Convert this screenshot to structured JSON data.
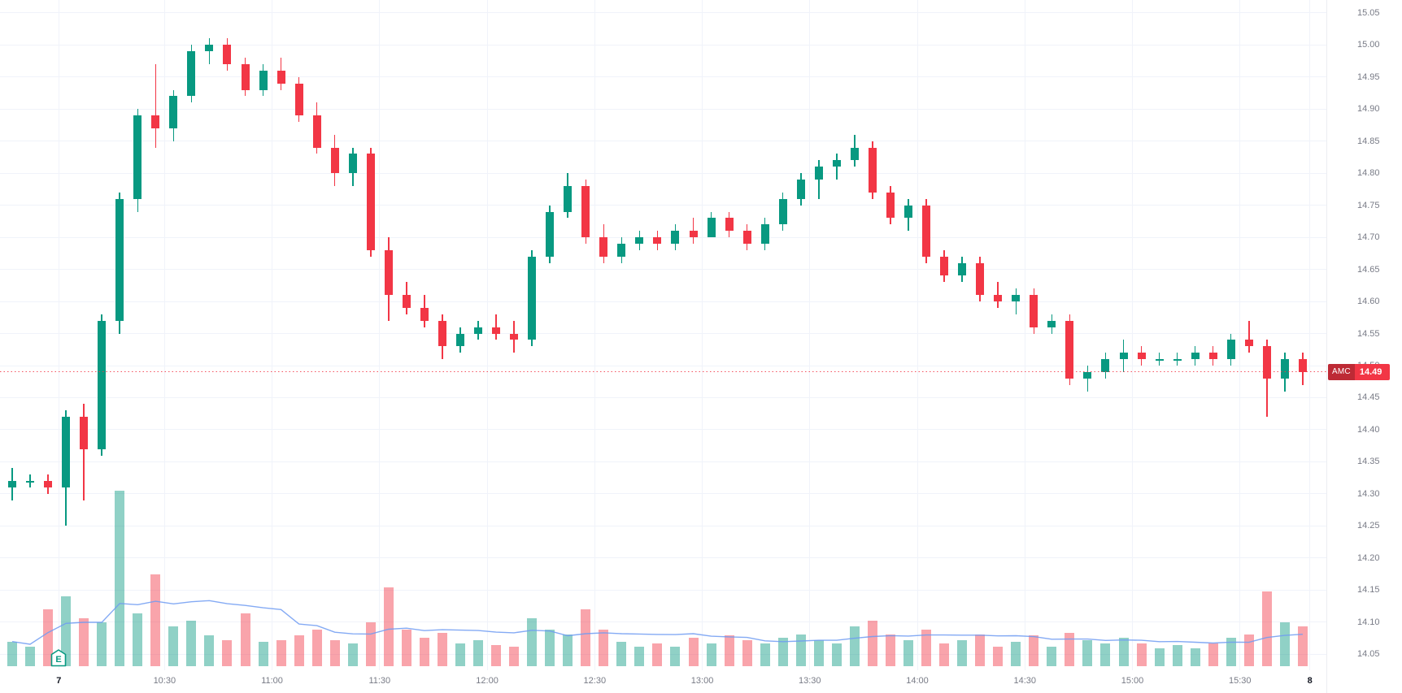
{
  "colors": {
    "background": "#ffffff",
    "up": "#089981",
    "down": "#f23645",
    "volume_up": "rgba(8,153,129,0.45)",
    "volume_down": "rgba(242,54,69,0.45)",
    "ma_line": "#6f9bf2",
    "grid": "#f0f3fa",
    "axis_text": "#787b86",
    "day_label_text": "#131722",
    "price_line": "#f23645",
    "badge_bg": "#f23645",
    "badge_text": "#ffffff",
    "earnings": "#089981"
  },
  "chart_data": {
    "type": "candlestick",
    "symbol": "AMC",
    "last_price_label": "14.49",
    "price_line": 14.49,
    "interval": "5m",
    "ylim": [
      14.025,
      15.07
    ],
    "y_axis_labels": [
      "15.05",
      "15.00",
      "14.95",
      "14.90",
      "14.85",
      "14.80",
      "14.75",
      "14.70",
      "14.65",
      "14.60",
      "14.55",
      "14.50",
      "14.45",
      "14.40",
      "14.35",
      "14.30",
      "14.25",
      "14.20",
      "14.15",
      "14.10",
      "14.05"
    ],
    "x_ticks": [
      {
        "label": "7",
        "index": 2.6,
        "major": true
      },
      {
        "label": "10:30",
        "index": 8.5,
        "major": false
      },
      {
        "label": "11:00",
        "index": 14.5,
        "major": false
      },
      {
        "label": "11:30",
        "index": 20.5,
        "major": false
      },
      {
        "label": "12:00",
        "index": 26.5,
        "major": false
      },
      {
        "label": "12:30",
        "index": 32.5,
        "major": false
      },
      {
        "label": "13:00",
        "index": 38.5,
        "major": false
      },
      {
        "label": "13:30",
        "index": 44.5,
        "major": false
      },
      {
        "label": "14:00",
        "index": 50.5,
        "major": false
      },
      {
        "label": "14:30",
        "index": 56.5,
        "major": false
      },
      {
        "label": "15:00",
        "index": 62.5,
        "major": false
      },
      {
        "label": "15:30",
        "index": 68.5,
        "major": false
      },
      {
        "label": "8",
        "index": 72.4,
        "major": true
      }
    ],
    "earnings_marker": {
      "label": "E",
      "index": 2.6
    },
    "volume_axis_max": 2.0,
    "volume_ma_window": 10,
    "candles": [
      [
        14.31,
        14.34,
        14.29,
        14.32
      ],
      [
        14.32,
        14.33,
        14.31,
        14.32
      ],
      [
        14.32,
        14.33,
        14.3,
        14.31
      ],
      [
        14.31,
        14.43,
        14.25,
        14.42
      ],
      [
        14.42,
        14.44,
        14.29,
        14.37
      ],
      [
        14.37,
        14.58,
        14.36,
        14.57
      ],
      [
        14.57,
        14.77,
        14.55,
        14.76
      ],
      [
        14.76,
        14.9,
        14.74,
        14.89
      ],
      [
        14.89,
        14.97,
        14.84,
        14.87
      ],
      [
        14.87,
        14.93,
        14.85,
        14.92
      ],
      [
        14.92,
        15.0,
        14.91,
        14.99
      ],
      [
        14.99,
        15.01,
        14.97,
        15.0
      ],
      [
        15.0,
        15.01,
        14.96,
        14.97
      ],
      [
        14.97,
        14.98,
        14.92,
        14.93
      ],
      [
        14.93,
        14.97,
        14.92,
        14.96
      ],
      [
        14.96,
        14.98,
        14.93,
        14.94
      ],
      [
        14.94,
        14.95,
        14.88,
        14.89
      ],
      [
        14.89,
        14.91,
        14.83,
        14.84
      ],
      [
        14.84,
        14.86,
        14.78,
        14.8
      ],
      [
        14.8,
        14.84,
        14.78,
        14.83
      ],
      [
        14.83,
        14.84,
        14.67,
        14.68
      ],
      [
        14.68,
        14.7,
        14.57,
        14.61
      ],
      [
        14.61,
        14.63,
        14.58,
        14.59
      ],
      [
        14.59,
        14.61,
        14.56,
        14.57
      ],
      [
        14.57,
        14.58,
        14.51,
        14.53
      ],
      [
        14.53,
        14.56,
        14.52,
        14.55
      ],
      [
        14.55,
        14.57,
        14.54,
        14.56
      ],
      [
        14.56,
        14.58,
        14.54,
        14.55
      ],
      [
        14.55,
        14.57,
        14.52,
        14.54
      ],
      [
        14.54,
        14.68,
        14.53,
        14.67
      ],
      [
        14.67,
        14.75,
        14.66,
        14.74
      ],
      [
        14.74,
        14.8,
        14.73,
        14.78
      ],
      [
        14.78,
        14.79,
        14.69,
        14.7
      ],
      [
        14.7,
        14.72,
        14.66,
        14.67
      ],
      [
        14.67,
        14.7,
        14.66,
        14.69
      ],
      [
        14.69,
        14.71,
        14.68,
        14.7
      ],
      [
        14.7,
        14.71,
        14.68,
        14.69
      ],
      [
        14.69,
        14.72,
        14.68,
        14.71
      ],
      [
        14.71,
        14.73,
        14.69,
        14.7
      ],
      [
        14.7,
        14.74,
        14.7,
        14.73
      ],
      [
        14.73,
        14.74,
        14.7,
        14.71
      ],
      [
        14.71,
        14.72,
        14.68,
        14.69
      ],
      [
        14.69,
        14.73,
        14.68,
        14.72
      ],
      [
        14.72,
        14.77,
        14.71,
        14.76
      ],
      [
        14.76,
        14.8,
        14.75,
        14.79
      ],
      [
        14.79,
        14.82,
        14.76,
        14.81
      ],
      [
        14.81,
        14.83,
        14.79,
        14.82
      ],
      [
        14.82,
        14.86,
        14.81,
        14.84
      ],
      [
        14.84,
        14.85,
        14.76,
        14.77
      ],
      [
        14.77,
        14.78,
        14.72,
        14.73
      ],
      [
        14.73,
        14.76,
        14.71,
        14.75
      ],
      [
        14.75,
        14.76,
        14.66,
        14.67
      ],
      [
        14.67,
        14.68,
        14.63,
        14.64
      ],
      [
        14.64,
        14.67,
        14.63,
        14.66
      ],
      [
        14.66,
        14.67,
        14.6,
        14.61
      ],
      [
        14.61,
        14.63,
        14.59,
        14.6
      ],
      [
        14.6,
        14.62,
        14.58,
        14.61
      ],
      [
        14.61,
        14.62,
        14.55,
        14.56
      ],
      [
        14.56,
        14.58,
        14.55,
        14.57
      ],
      [
        14.57,
        14.58,
        14.47,
        14.48
      ],
      [
        14.48,
        14.5,
        14.46,
        14.49
      ],
      [
        14.49,
        14.52,
        14.48,
        14.51
      ],
      [
        14.51,
        14.54,
        14.49,
        14.52
      ],
      [
        14.52,
        14.53,
        14.5,
        14.51
      ],
      [
        14.51,
        14.52,
        14.5,
        14.51
      ],
      [
        14.51,
        14.52,
        14.5,
        14.51
      ],
      [
        14.51,
        14.53,
        14.5,
        14.52
      ],
      [
        14.52,
        14.53,
        14.5,
        14.51
      ],
      [
        14.51,
        14.55,
        14.5,
        14.54
      ],
      [
        14.54,
        14.57,
        14.52,
        14.53
      ],
      [
        14.53,
        14.54,
        14.42,
        14.48
      ],
      [
        14.48,
        14.52,
        14.46,
        14.51
      ],
      [
        14.51,
        14.52,
        14.47,
        14.49
      ]
    ],
    "volumes": [
      0.28,
      0.22,
      0.65,
      0.8,
      0.55,
      0.5,
      2.0,
      0.6,
      1.05,
      0.45,
      0.52,
      0.35,
      0.3,
      0.6,
      0.28,
      0.3,
      0.35,
      0.42,
      0.3,
      0.26,
      0.5,
      0.9,
      0.42,
      0.32,
      0.38,
      0.26,
      0.3,
      0.24,
      0.22,
      0.55,
      0.42,
      0.36,
      0.65,
      0.42,
      0.28,
      0.22,
      0.26,
      0.22,
      0.32,
      0.26,
      0.35,
      0.3,
      0.26,
      0.32,
      0.36,
      0.3,
      0.26,
      0.45,
      0.52,
      0.36,
      0.3,
      0.42,
      0.26,
      0.3,
      0.36,
      0.22,
      0.28,
      0.35,
      0.22,
      0.38,
      0.3,
      0.26,
      0.32,
      0.26,
      0.2,
      0.24,
      0.2,
      0.26,
      0.32,
      0.36,
      0.85,
      0.5,
      0.45
    ]
  }
}
